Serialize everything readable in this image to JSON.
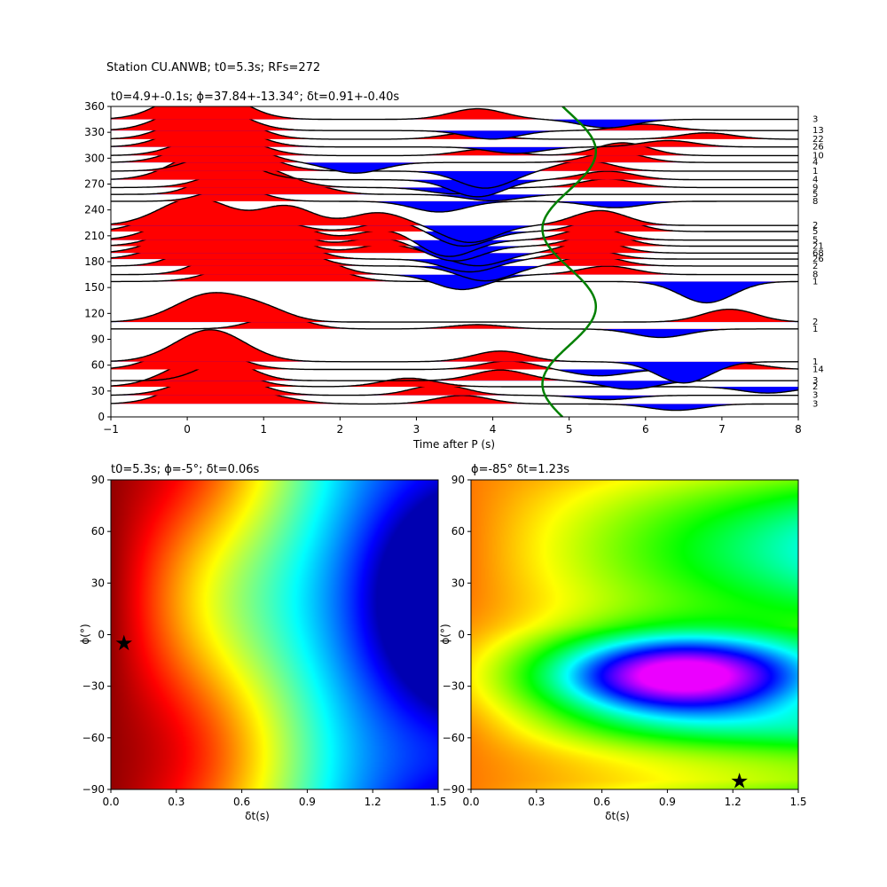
{
  "figure": {
    "suptitle": "Station CU.ANWB; t0=5.3s; RFs=272"
  },
  "chart_data": [
    {
      "type": "line",
      "role": "receiver-function-traces",
      "title": "t0=4.9+-0.1s; ϕ=37.84+-13.34°; δt=0.91+-0.40s",
      "xlabel": "Time after P (s)",
      "ylabel": "",
      "xlim": [
        -1,
        8
      ],
      "ylim": [
        0,
        360
      ],
      "xticks": [
        "−1",
        "0",
        "1",
        "2",
        "3",
        "4",
        "5",
        "6",
        "7",
        "8"
      ],
      "yticks": [
        "0",
        "30",
        "60",
        "90",
        "120",
        "150",
        "180",
        "210",
        "240",
        "270",
        "300",
        "330",
        "360"
      ],
      "fill_colors": {
        "positive": "#ff0000",
        "negative": "#0000ff"
      },
      "curve_color": "#008000",
      "traces": [
        {
          "baz": 15,
          "count": "3",
          "peaks": [
            [
              0.3,
              28
            ],
            [
              3.6,
              8
            ],
            [
              6.4,
              -6
            ],
            [
              1.2,
              4
            ]
          ]
        },
        {
          "baz": 25,
          "count": "3",
          "peaks": [
            [
              0.4,
              22
            ],
            [
              3.3,
              10
            ],
            [
              5.5,
              -4
            ]
          ]
        },
        {
          "baz": 35,
          "count": "2",
          "peaks": [
            [
              0.2,
              26
            ],
            [
              2.9,
              8
            ],
            [
              7.6,
              -6
            ]
          ]
        },
        {
          "baz": 42,
          "count": "3",
          "peaks": [
            [
              0.5,
              18
            ],
            [
              4.1,
              10
            ],
            [
              5.8,
              -8
            ]
          ]
        },
        {
          "baz": 55,
          "count": "14",
          "peaks": [
            [
              0.1,
              24
            ],
            [
              4.2,
              8
            ],
            [
              5.4,
              -6
            ],
            [
              7.2,
              6
            ]
          ]
        },
        {
          "baz": 64,
          "count": "1",
          "peaks": [
            [
              0.3,
              30
            ],
            [
              4.1,
              10
            ],
            [
              6.5,
              -20
            ]
          ]
        },
        {
          "baz": 102,
          "count": "1",
          "peaks": [
            [
              1.2,
              12
            ],
            [
              3.8,
              4
            ],
            [
              6.2,
              -8
            ]
          ]
        },
        {
          "baz": 110,
          "count": "2",
          "peaks": [
            [
              0.3,
              26
            ],
            [
              1.0,
              10
            ],
            [
              7.1,
              12
            ]
          ]
        },
        {
          "baz": 157,
          "count": "1",
          "peaks": [
            [
              0.9,
              22
            ],
            [
              1.8,
              10
            ],
            [
              6.8,
              -20
            ]
          ]
        },
        {
          "baz": 165,
          "count": "8",
          "peaks": [
            [
              0.5,
              20
            ],
            [
              1.6,
              16
            ],
            [
              3.6,
              -14
            ],
            [
              5.5,
              8
            ]
          ]
        },
        {
          "baz": 175,
          "count": "2",
          "peaks": [
            [
              0.2,
              18
            ],
            [
              1.3,
              18
            ],
            [
              3.9,
              -14
            ],
            [
              5.3,
              10
            ]
          ]
        },
        {
          "baz": 183,
          "count": "26",
          "peaks": [
            [
              0.1,
              22
            ],
            [
              1.3,
              16
            ],
            [
              3.7,
              -12
            ],
            [
              5.2,
              10
            ]
          ]
        },
        {
          "baz": 190,
          "count": "68",
          "peaks": [
            [
              0.1,
              24
            ],
            [
              1.2,
              16
            ],
            [
              2.6,
              8
            ],
            [
              3.8,
              -12
            ],
            [
              5.3,
              12
            ]
          ]
        },
        {
          "baz": 198,
          "count": "21",
          "peaks": [
            [
              0.2,
              24
            ],
            [
              1.2,
              14
            ],
            [
              2.5,
              8
            ],
            [
              3.5,
              -14
            ],
            [
              5.4,
              12
            ]
          ]
        },
        {
          "baz": 205,
          "count": "5",
          "peaks": [
            [
              0.1,
              26
            ],
            [
              1.3,
              14
            ],
            [
              2.6,
              10
            ],
            [
              3.4,
              -16
            ],
            [
              5.3,
              12
            ]
          ]
        },
        {
          "baz": 215,
          "count": "5",
          "peaks": [
            [
              0.0,
              24
            ],
            [
              1.1,
              10
            ],
            [
              2.7,
              10
            ],
            [
              3.6,
              -14
            ],
            [
              5.5,
              14
            ]
          ]
        },
        {
          "baz": 222,
          "count": "2",
          "peaks": [
            [
              0.1,
              26
            ],
            [
              1.3,
              18
            ],
            [
              2.5,
              12
            ],
            [
              3.7,
              -16
            ],
            [
              5.4,
              14
            ]
          ]
        },
        {
          "baz": 250,
          "count": "8",
          "peaks": [
            [
              0.6,
              14
            ],
            [
              3.3,
              -10
            ],
            [
              5.6,
              -6
            ]
          ]
        },
        {
          "baz": 258,
          "count": "5",
          "peaks": [
            [
              0.5,
              20
            ],
            [
              1.5,
              10
            ],
            [
              4.0,
              -6
            ]
          ]
        },
        {
          "baz": 266,
          "count": "9",
          "peaks": [
            [
              0.8,
              22
            ],
            [
              3.5,
              -6
            ],
            [
              5.5,
              8
            ]
          ]
        },
        {
          "baz": 275,
          "count": "4",
          "peaks": [
            [
              0.3,
              28
            ],
            [
              3.8,
              -16
            ],
            [
              5.5,
              8
            ]
          ]
        },
        {
          "baz": 285,
          "count": "1",
          "peaks": [
            [
              0.6,
              22
            ],
            [
              3.9,
              -16
            ],
            [
              5.2,
              10
            ]
          ]
        },
        {
          "baz": 295,
          "count": "4",
          "peaks": [
            [
              0.4,
              26
            ],
            [
              2.2,
              -10
            ],
            [
              5.6,
              10
            ]
          ]
        },
        {
          "baz": 303,
          "count": "10",
          "peaks": [
            [
              0.4,
              22
            ],
            [
              3.9,
              6
            ],
            [
              5.7,
              12
            ]
          ]
        },
        {
          "baz": 313,
          "count": "26",
          "peaks": [
            [
              0.3,
              28
            ],
            [
              4.3,
              -6
            ],
            [
              6.3,
              6
            ]
          ]
        },
        {
          "baz": 322,
          "count": "22",
          "peaks": [
            [
              0.3,
              30
            ],
            [
              3.7,
              6
            ],
            [
              6.8,
              6
            ]
          ]
        },
        {
          "baz": 332,
          "count": "13",
          "peaks": [
            [
              0.2,
              28
            ],
            [
              4.0,
              -8
            ],
            [
              6.0,
              6
            ]
          ]
        },
        {
          "baz": 345,
          "count": "3",
          "peaks": [
            [
              0.2,
              32
            ],
            [
              3.8,
              10
            ],
            [
              5.5,
              -8
            ]
          ]
        }
      ],
      "moveout_curve": {
        "offset": 5.0,
        "amplitude": 0.35,
        "period_deg": 180,
        "phase_deg": 37.84,
        "y_range": [
          0,
          360
        ]
      }
    },
    {
      "type": "heatmap",
      "role": "energy-grid-left",
      "title": "t0=5.3s; ϕ=-5°; δt=0.06s",
      "xlabel": "δt(s)",
      "ylabel": "ϕ(°)",
      "xlim": [
        0,
        1.5
      ],
      "ylim": [
        -90,
        90
      ],
      "xticks": [
        "0.0",
        "0.3",
        "0.6",
        "0.9",
        "1.2",
        "1.5"
      ],
      "yticks": [
        "−90",
        "−60",
        "−30",
        "0",
        "30",
        "60",
        "90"
      ],
      "colormap": "jet",
      "best": {
        "dt": 0.06,
        "phi": -5
      },
      "features": {
        "low_centers": [
          [
            1.5,
            20
          ],
          [
            1.5,
            -60
          ]
        ]
      }
    },
    {
      "type": "heatmap",
      "role": "energy-grid-right",
      "title": "ϕ=-85° δt=1.23s",
      "xlabel": "δt(s)",
      "ylabel": "ϕ(°)",
      "xlim": [
        0,
        1.5
      ],
      "ylim": [
        -90,
        90
      ],
      "xticks": [
        "0.0",
        "0.3",
        "0.6",
        "0.9",
        "1.2",
        "1.5"
      ],
      "yticks": [
        "−90",
        "−60",
        "−30",
        "0",
        "30",
        "60",
        "90"
      ],
      "colormap": "hsv",
      "best": {
        "dt": 1.23,
        "phi": -85
      },
      "features": {
        "min_center": [
          0.9,
          -24
        ]
      }
    }
  ]
}
